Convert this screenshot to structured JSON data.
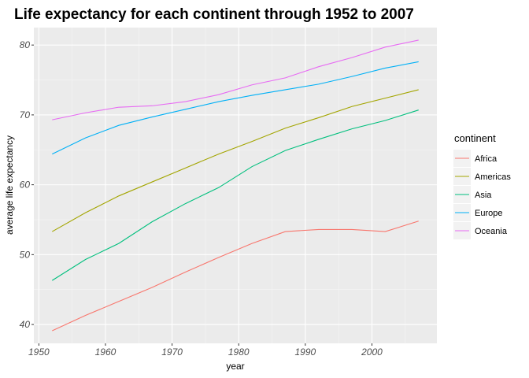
{
  "chart_data": {
    "type": "line",
    "title": "Life expectancy for each continent through 1952 to 2007",
    "xlabel": "year",
    "ylabel": "average life expectancy",
    "x": [
      1952,
      1957,
      1962,
      1967,
      1972,
      1977,
      1982,
      1987,
      1992,
      1997,
      2002,
      2007
    ],
    "xlim": [
      1949.25,
      2009.75
    ],
    "ylim": [
      37.3,
      82.5
    ],
    "x_ticks": [
      1950,
      1960,
      1970,
      1980,
      1990,
      2000
    ],
    "x_tick_labels": [
      "1950",
      "1960",
      "1970",
      "1980",
      "1990",
      "2000"
    ],
    "y_ticks": [
      40,
      50,
      60,
      70,
      80
    ],
    "y_tick_labels": [
      "40",
      "50",
      "60",
      "70",
      "80"
    ],
    "grid": true,
    "legend_title": "continent",
    "legend_position": "right",
    "series": [
      {
        "name": "Africa",
        "color": "#F8766D",
        "values": [
          39.1,
          41.3,
          43.3,
          45.3,
          47.5,
          49.6,
          51.6,
          53.3,
          53.6,
          53.6,
          53.3,
          54.8
        ]
      },
      {
        "name": "Americas",
        "color": "#A3A500",
        "values": [
          53.3,
          56.0,
          58.4,
          60.4,
          62.4,
          64.4,
          66.2,
          68.1,
          69.6,
          71.2,
          72.4,
          73.6
        ]
      },
      {
        "name": "Asia",
        "color": "#00BF7D",
        "values": [
          46.3,
          49.3,
          51.6,
          54.7,
          57.3,
          59.6,
          62.6,
          64.9,
          66.5,
          68.0,
          69.2,
          70.7
        ]
      },
      {
        "name": "Europe",
        "color": "#00B0F6",
        "values": [
          64.4,
          66.7,
          68.5,
          69.7,
          70.8,
          71.9,
          72.8,
          73.6,
          74.4,
          75.5,
          76.7,
          77.6
        ]
      },
      {
        "name": "Oceania",
        "color": "#E76BF3",
        "values": [
          69.3,
          70.3,
          71.1,
          71.3,
          71.9,
          72.9,
          74.3,
          75.3,
          76.9,
          78.2,
          79.7,
          80.7
        ]
      }
    ]
  }
}
